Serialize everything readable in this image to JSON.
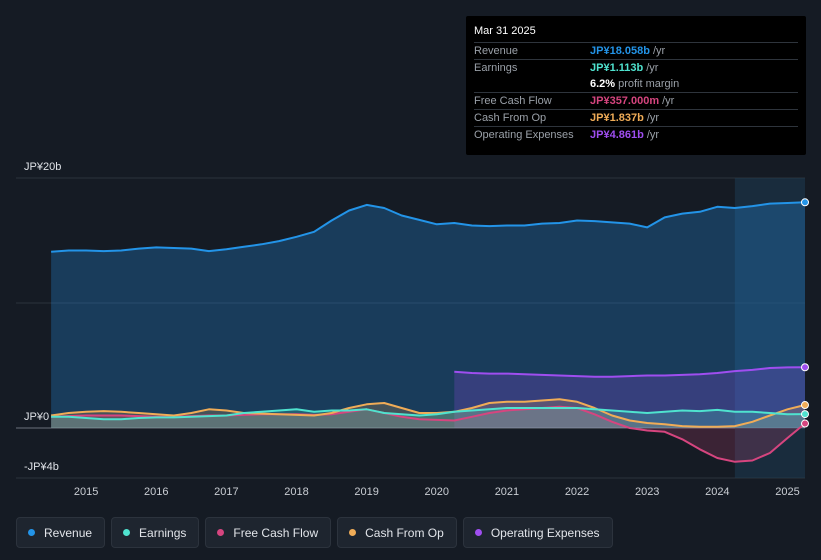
{
  "chart_data": {
    "type": "area",
    "title": "",
    "xlabel": "",
    "ylabel": "",
    "ylim": [
      -4,
      20
    ],
    "y_tick_labels": [
      "JP¥20b",
      "JP¥0",
      "-JP¥4b"
    ],
    "x_ticks": [
      "2015",
      "2016",
      "2017",
      "2018",
      "2019",
      "2020",
      "2021",
      "2022",
      "2023",
      "2024",
      "2025"
    ],
    "x_range": [
      2014.0,
      2025.25
    ],
    "forecast_start": 2024.25,
    "series": [
      {
        "name": "Revenue",
        "color": "#2394e8",
        "x": [
          2014.5,
          2014.75,
          2015.0,
          2015.25,
          2015.5,
          2015.75,
          2016.0,
          2016.25,
          2016.5,
          2016.75,
          2017.0,
          2017.25,
          2017.5,
          2017.75,
          2018.0,
          2018.25,
          2018.5,
          2018.75,
          2019.0,
          2019.25,
          2019.5,
          2019.75,
          2020.0,
          2020.25,
          2020.5,
          2020.75,
          2021.0,
          2021.25,
          2021.5,
          2021.75,
          2022.0,
          2022.25,
          2022.5,
          2022.75,
          2023.0,
          2023.25,
          2023.5,
          2023.75,
          2024.0,
          2024.25,
          2024.5,
          2024.75,
          2025.0,
          2025.25
        ],
        "values": [
          14.1,
          14.2,
          14.2,
          14.15,
          14.2,
          14.35,
          14.45,
          14.4,
          14.35,
          14.15,
          14.3,
          14.5,
          14.7,
          14.95,
          15.3,
          15.7,
          16.6,
          17.4,
          17.85,
          17.6,
          17.0,
          16.65,
          16.3,
          16.4,
          16.2,
          16.15,
          16.2,
          16.2,
          16.35,
          16.4,
          16.6,
          16.55,
          16.45,
          16.35,
          16.05,
          16.85,
          17.15,
          17.3,
          17.7,
          17.6,
          17.75,
          17.95,
          18.0,
          18.058
        ]
      },
      {
        "name": "Earnings",
        "color": "#4fe3cf",
        "x": [
          2014.5,
          2014.75,
          2015.0,
          2015.25,
          2015.5,
          2015.75,
          2016.0,
          2016.25,
          2016.5,
          2016.75,
          2017.0,
          2017.25,
          2017.5,
          2017.75,
          2018.0,
          2018.25,
          2018.5,
          2018.75,
          2019.0,
          2019.25,
          2019.5,
          2019.75,
          2020.0,
          2020.25,
          2020.5,
          2020.75,
          2021.0,
          2021.25,
          2021.5,
          2021.75,
          2022.0,
          2022.25,
          2022.5,
          2022.75,
          2023.0,
          2023.25,
          2023.5,
          2023.75,
          2024.0,
          2024.25,
          2024.5,
          2024.75,
          2025.0,
          2025.25
        ],
        "values": [
          0.9,
          0.9,
          0.8,
          0.7,
          0.7,
          0.8,
          0.85,
          0.85,
          0.9,
          0.95,
          1.0,
          1.2,
          1.3,
          1.4,
          1.5,
          1.3,
          1.4,
          1.4,
          1.5,
          1.2,
          1.1,
          1.0,
          1.1,
          1.3,
          1.4,
          1.5,
          1.6,
          1.6,
          1.6,
          1.6,
          1.6,
          1.5,
          1.4,
          1.3,
          1.2,
          1.3,
          1.4,
          1.35,
          1.45,
          1.3,
          1.3,
          1.2,
          1.1,
          1.113
        ]
      },
      {
        "name": "Free Cash Flow",
        "color": "#d6457f",
        "x": [
          2014.5,
          2014.75,
          2015.0,
          2015.25,
          2015.5,
          2015.75,
          2016.0,
          2016.25,
          2016.5,
          2016.75,
          2017.0,
          2017.25,
          2017.5,
          2017.75,
          2018.0,
          2018.25,
          2018.5,
          2018.75,
          2019.0,
          2019.25,
          2019.5,
          2019.75,
          2020.0,
          2020.25,
          2020.5,
          2020.75,
          2021.0,
          2021.25,
          2021.5,
          2021.75,
          2022.0,
          2022.25,
          2022.5,
          2022.75,
          2023.0,
          2023.25,
          2023.5,
          2023.75,
          2024.0,
          2024.25,
          2024.5,
          2024.75,
          2025.0,
          2025.25
        ],
        "values": [
          0.9,
          0.95,
          1.0,
          1.0,
          1.0,
          0.95,
          0.9,
          0.9,
          0.95,
          1.0,
          1.0,
          1.05,
          1.1,
          1.1,
          1.1,
          1.05,
          1.1,
          1.3,
          1.5,
          1.2,
          0.9,
          0.7,
          0.65,
          0.6,
          0.9,
          1.2,
          1.4,
          1.5,
          1.6,
          1.7,
          1.6,
          1.1,
          0.5,
          0.0,
          -0.2,
          -0.3,
          -0.9,
          -1.7,
          -2.4,
          -2.7,
          -2.6,
          -2.0,
          -0.8,
          0.357
        ]
      },
      {
        "name": "Cash From Op",
        "color": "#f0ac57",
        "x": [
          2014.5,
          2014.75,
          2015.0,
          2015.25,
          2015.5,
          2015.75,
          2016.0,
          2016.25,
          2016.5,
          2016.75,
          2017.0,
          2017.25,
          2017.5,
          2017.75,
          2018.0,
          2018.25,
          2018.5,
          2018.75,
          2019.0,
          2019.25,
          2019.5,
          2019.75,
          2020.0,
          2020.25,
          2020.5,
          2020.75,
          2021.0,
          2021.25,
          2021.5,
          2021.75,
          2022.0,
          2022.25,
          2022.5,
          2022.75,
          2023.0,
          2023.25,
          2023.5,
          2023.75,
          2024.0,
          2024.25,
          2024.5,
          2024.75,
          2025.0,
          2025.25
        ],
        "values": [
          1.0,
          1.2,
          1.3,
          1.35,
          1.3,
          1.2,
          1.1,
          1.0,
          1.2,
          1.5,
          1.4,
          1.2,
          1.15,
          1.1,
          1.05,
          1.0,
          1.2,
          1.6,
          1.9,
          2.0,
          1.6,
          1.2,
          1.2,
          1.3,
          1.6,
          2.0,
          2.1,
          2.1,
          2.2,
          2.3,
          2.1,
          1.6,
          1.0,
          0.6,
          0.4,
          0.3,
          0.15,
          0.1,
          0.1,
          0.15,
          0.5,
          1.0,
          1.5,
          1.837
        ]
      },
      {
        "name": "Operating Expenses",
        "color": "#9f4ef0",
        "x": [
          2020.25,
          2020.5,
          2020.75,
          2021.0,
          2021.25,
          2021.5,
          2021.75,
          2022.0,
          2022.25,
          2022.5,
          2022.75,
          2023.0,
          2023.25,
          2023.5,
          2023.75,
          2024.0,
          2024.25,
          2024.5,
          2024.75,
          2025.0,
          2025.25
        ],
        "values": [
          4.5,
          4.4,
          4.35,
          4.35,
          4.3,
          4.25,
          4.2,
          4.15,
          4.1,
          4.1,
          4.15,
          4.2,
          4.2,
          4.25,
          4.3,
          4.4,
          4.55,
          4.65,
          4.8,
          4.85,
          4.861
        ]
      }
    ]
  },
  "tooltip": {
    "date": "Mar 31 2025",
    "rows": [
      {
        "label": "Revenue",
        "value": "JP¥18.058b",
        "suffix": "/yr",
        "color": "#2394e8"
      },
      {
        "label": "Earnings",
        "value": "JP¥1.113b",
        "suffix": "/yr",
        "color": "#4fe3cf"
      },
      {
        "label": "",
        "value": "6.2%",
        "suffix": "profit margin",
        "color": "#ffffff"
      },
      {
        "label": "Free Cash Flow",
        "value": "JP¥357.000m",
        "suffix": "/yr",
        "color": "#d6457f"
      },
      {
        "label": "Cash From Op",
        "value": "JP¥1.837b",
        "suffix": "/yr",
        "color": "#f0ac57"
      },
      {
        "label": "Operating Expenses",
        "value": "JP¥4.861b",
        "suffix": "/yr",
        "color": "#9f4ef0"
      }
    ]
  },
  "legend": [
    {
      "label": "Revenue",
      "color": "#2394e8"
    },
    {
      "label": "Earnings",
      "color": "#4fe3cf"
    },
    {
      "label": "Free Cash Flow",
      "color": "#d6457f"
    },
    {
      "label": "Cash From Op",
      "color": "#f0ac57"
    },
    {
      "label": "Operating Expenses",
      "color": "#9f4ef0"
    }
  ]
}
